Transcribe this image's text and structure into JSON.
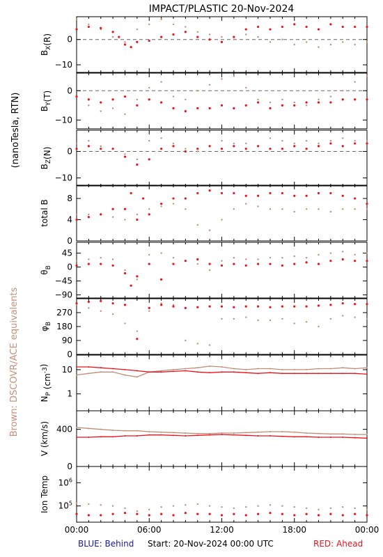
{
  "title": "IMPACT/PLASTIC   20-Nov-2024",
  "left_labels": {
    "units": "(nanoTesla, RTN)",
    "equiv": "Brown: DSCOVR/ACE equivalents"
  },
  "footer": {
    "blue": "BLUE: Behind",
    "start": "Start: 20-Nov-2024 00:00 UTC",
    "red": "RED: Ahead"
  },
  "colors": {
    "ahead": "#e8141c",
    "equiv": "#c08c78",
    "blue": "#1a1aa0",
    "brown_text": "#c89078"
  },
  "chart_data": [
    {
      "type": "scatter",
      "panel": "bx",
      "ylabel": "B_X(R)",
      "yticks": [
        "0",
        "−10"
      ],
      "ylim": [
        -13,
        9
      ],
      "zero_line": true,
      "series": [
        {
          "name": "Ahead",
          "color": "red",
          "x": [
            0,
            1,
            2,
            3,
            3.5,
            4,
            4.5,
            5,
            6,
            7,
            8,
            9,
            10,
            11,
            12,
            13,
            14,
            15,
            16,
            17,
            18,
            19,
            20,
            21,
            22,
            23,
            24
          ],
          "y": [
            4,
            5,
            4.5,
            3,
            1,
            -2,
            -3,
            -1,
            -0.5,
            1,
            2,
            3,
            1,
            0,
            -1,
            1,
            4,
            5,
            4,
            5,
            6,
            5,
            4,
            6,
            5,
            5,
            5
          ]
        },
        {
          "name": "DSCOVR/ACE",
          "color": "brown",
          "x": [
            0,
            1,
            2,
            3,
            4,
            5,
            6,
            7,
            8,
            9,
            10,
            11,
            12,
            13,
            14,
            15,
            16,
            17,
            18,
            19,
            20,
            21,
            22,
            23,
            24
          ],
          "y": [
            8,
            6,
            4,
            1,
            -1,
            4,
            6,
            8,
            6,
            5,
            3,
            2,
            1,
            0,
            2,
            1,
            -1,
            0,
            -2,
            -1,
            -3,
            -2,
            -1,
            -2,
            -1
          ]
        }
      ]
    },
    {
      "type": "scatter",
      "panel": "by",
      "ylabel": "B_Y(T)",
      "yticks": [
        "0",
        "−10"
      ],
      "ylim": [
        -13,
        6
      ],
      "zero_line": true,
      "series": [
        {
          "name": "Ahead",
          "color": "red",
          "x": [
            0,
            1,
            2,
            3,
            4,
            5,
            6,
            7,
            8,
            9,
            10,
            11,
            12,
            13,
            14,
            15,
            16,
            17,
            18,
            19,
            20,
            21,
            22,
            23,
            24
          ],
          "y": [
            -2,
            -3,
            -4,
            -3,
            -2,
            -5,
            -3,
            -4,
            -6,
            -7,
            -6,
            -6,
            -5,
            -6,
            -5,
            -4,
            -6,
            -5,
            -5,
            -4,
            -4,
            -4,
            -3,
            -3,
            -3
          ]
        },
        {
          "name": "DSCOVR/ACE",
          "color": "brown",
          "x": [
            0,
            1,
            2,
            3,
            4,
            5,
            6,
            7,
            8,
            9,
            10,
            11,
            12,
            13,
            14,
            15,
            16,
            17,
            18,
            19,
            20,
            21,
            22,
            23,
            24
          ],
          "y": [
            -2,
            -5,
            -7,
            -6,
            -8,
            -3,
            1,
            3,
            -2,
            -3,
            0,
            2,
            4,
            5,
            1,
            -3,
            -4,
            -3,
            -4,
            -5,
            -3,
            -2,
            0,
            3,
            5
          ]
        }
      ]
    },
    {
      "type": "scatter",
      "panel": "bz",
      "ylabel": "B_Z(N)",
      "yticks": [
        "0",
        "−10"
      ],
      "ylim": [
        -13,
        8
      ],
      "zero_line": true,
      "series": [
        {
          "name": "Ahead",
          "color": "red",
          "x": [
            0,
            1,
            2,
            3,
            4,
            5,
            6,
            7,
            8,
            9,
            10,
            11,
            12,
            13,
            14,
            15,
            16,
            17,
            18,
            19,
            20,
            21,
            22,
            23,
            24
          ],
          "y": [
            1,
            2,
            1,
            1,
            -2,
            -5,
            -3,
            1,
            2,
            0,
            1,
            2,
            1,
            2,
            1,
            2,
            1,
            1,
            2,
            1,
            2,
            3,
            2,
            3,
            3
          ]
        },
        {
          "name": "DSCOVR/ACE",
          "color": "brown",
          "x": [
            0,
            1,
            2,
            3,
            4,
            5,
            6,
            7,
            8,
            9,
            10,
            11,
            12,
            13,
            14,
            15,
            16,
            17,
            18,
            19,
            20,
            21,
            22,
            23,
            24
          ],
          "y": [
            3,
            4,
            2,
            1,
            -1,
            -3,
            4,
            5,
            3,
            1,
            0,
            2,
            4,
            3,
            3,
            2,
            5,
            4,
            3,
            4,
            3,
            4,
            5,
            4,
            4
          ]
        }
      ]
    },
    {
      "type": "scatter",
      "panel": "btotal",
      "ylabel": "total B",
      "yticks": [
        "0",
        "4",
        "8"
      ],
      "ylim": [
        0,
        10.5
      ],
      "zero_line": false,
      "series": [
        {
          "name": "Ahead",
          "color": "red",
          "x": [
            0,
            1,
            2,
            3,
            4,
            4.5,
            5,
            5.5,
            6,
            7,
            8,
            9,
            10,
            11,
            12,
            13,
            14,
            15,
            16,
            17,
            18,
            19,
            20,
            21,
            22,
            23,
            24
          ],
          "y": [
            4,
            4.5,
            5,
            6,
            6,
            9,
            4,
            8,
            5,
            7,
            8,
            8,
            9,
            9.5,
            9,
            9,
            8.5,
            8.5,
            9,
            9,
            8.5,
            8.5,
            9,
            9,
            8.5,
            8,
            7
          ]
        },
        {
          "name": "DSCOVR/ACE",
          "color": "brown",
          "x": [
            0,
            1,
            2,
            3,
            4,
            5,
            6,
            7,
            8,
            9,
            10,
            11,
            12,
            13,
            14,
            15,
            16,
            17,
            18,
            19,
            20,
            21,
            22,
            23,
            24
          ],
          "y": [
            5,
            5,
            5,
            4.5,
            4,
            5,
            6,
            6.5,
            7,
            6,
            3,
            2,
            4,
            6,
            7,
            6.5,
            6,
            6,
            5.5,
            6,
            6,
            5.5,
            6,
            6,
            6
          ]
        }
      ]
    },
    {
      "type": "scatter",
      "panel": "theta",
      "ylabel": "θ_B",
      "yticks": [
        "45",
        "0",
        "−45",
        "−90"
      ],
      "ylim": [
        -100,
        80
      ],
      "zero_line": false,
      "series": [
        {
          "name": "Ahead",
          "color": "red",
          "x": [
            0,
            1,
            2,
            3,
            4,
            4.5,
            5,
            6,
            7,
            8,
            9,
            10,
            11,
            12,
            13,
            14,
            15,
            16,
            17,
            18,
            19,
            20,
            21,
            22,
            23,
            24
          ],
          "y": [
            5,
            10,
            10,
            5,
            -20,
            -60,
            -30,
            10,
            -40,
            10,
            20,
            25,
            10,
            5,
            10,
            5,
            10,
            10,
            5,
            10,
            15,
            10,
            20,
            25,
            20,
            20
          ]
        },
        {
          "name": "DSCOVR/ACE",
          "color": "brown",
          "x": [
            0,
            1,
            2,
            3,
            4,
            5,
            6,
            7,
            8,
            9,
            10,
            11,
            12,
            13,
            14,
            15,
            16,
            17,
            18,
            19,
            20,
            21,
            22,
            23,
            24
          ],
          "y": [
            20,
            25,
            30,
            25,
            -10,
            -40,
            40,
            45,
            30,
            20,
            10,
            -10,
            20,
            30,
            25,
            25,
            30,
            30,
            35,
            30,
            40,
            45,
            50,
            40,
            45
          ]
        }
      ]
    },
    {
      "type": "scatter",
      "panel": "phi",
      "ylabel": "φ_B",
      "yticks": [
        "270",
        "180",
        "90",
        "0"
      ],
      "ylim": [
        0,
        360
      ],
      "zero_line": false,
      "series": [
        {
          "name": "Ahead",
          "color": "red",
          "x": [
            0,
            1,
            2,
            3,
            4,
            5,
            6,
            7,
            8,
            9,
            10,
            11,
            12,
            13,
            14,
            15,
            16,
            17,
            18,
            19,
            20,
            21,
            22,
            23,
            24
          ],
          "y": [
            330,
            340,
            345,
            330,
            320,
            100,
            300,
            320,
            310,
            300,
            305,
            310,
            310,
            305,
            310,
            310,
            305,
            310,
            310,
            310,
            315,
            320,
            330,
            325,
            325
          ]
        },
        {
          "name": "DSCOVR/ACE",
          "color": "brown",
          "x": [
            0,
            1,
            2,
            3,
            4,
            5,
            6,
            7,
            8,
            9,
            10,
            11,
            12,
            13,
            14,
            15,
            16,
            17,
            18,
            19,
            20,
            21,
            22,
            23,
            24
          ],
          "y": [
            320,
            300,
            280,
            260,
            200,
            150,
            280,
            330,
            320,
            90,
            70,
            60,
            230,
            230,
            240,
            220,
            220,
            230,
            200,
            210,
            180,
            230,
            250,
            240,
            230
          ]
        }
      ]
    },
    {
      "type": "line",
      "panel": "np",
      "ylabel": "N_P (cm^-3)",
      "yticks": [
        "10",
        "1"
      ],
      "ylim_log": [
        0.2,
        40
      ],
      "log": true,
      "series": [
        {
          "name": "Ahead",
          "color": "red",
          "x": [
            0,
            1,
            2,
            3,
            4,
            5,
            6,
            7,
            8,
            9,
            10,
            11,
            12,
            13,
            14,
            15,
            16,
            17,
            18,
            19,
            20,
            21,
            22,
            23,
            24
          ],
          "y": [
            13,
            13,
            12,
            11,
            10,
            9,
            8,
            8,
            8.5,
            9,
            8,
            7.5,
            8,
            8,
            7.5,
            7,
            7.5,
            7,
            7,
            7,
            7,
            7,
            7,
            7,
            6.5
          ]
        },
        {
          "name": "DSCOVR/ACE",
          "color": "brown",
          "x": [
            0,
            1,
            2,
            3,
            4,
            5,
            6,
            7,
            8,
            9,
            10,
            11,
            12,
            13,
            14,
            15,
            16,
            17,
            18,
            19,
            20,
            21,
            22,
            23,
            24
          ],
          "y": [
            6,
            7,
            8,
            8,
            6,
            5,
            8,
            9,
            10,
            11,
            12,
            14,
            13,
            11,
            10,
            11,
            11,
            10,
            10,
            10,
            11,
            11,
            12,
            11,
            12
          ]
        }
      ]
    },
    {
      "type": "line",
      "panel": "v",
      "ylabel": "V (km/s)",
      "yticks": [
        "400",
        "0"
      ],
      "ylim": [
        0,
        600
      ],
      "series": [
        {
          "name": "Ahead",
          "color": "red",
          "x": [
            0,
            1,
            2,
            3,
            4,
            5,
            6,
            7,
            8,
            9,
            10,
            11,
            12,
            13,
            14,
            15,
            16,
            17,
            18,
            19,
            20,
            21,
            22,
            23,
            24
          ],
          "y": [
            315,
            315,
            320,
            320,
            330,
            330,
            340,
            340,
            335,
            330,
            335,
            340,
            345,
            340,
            335,
            330,
            330,
            325,
            320,
            320,
            315,
            315,
            315,
            310,
            305
          ]
        },
        {
          "name": "DSCOVR/ACE",
          "color": "brown",
          "x": [
            0,
            1,
            2,
            3,
            4,
            5,
            6,
            7,
            8,
            9,
            10,
            11,
            12,
            13,
            14,
            15,
            16,
            17,
            18,
            19,
            20,
            21,
            22,
            23,
            24
          ],
          "y": [
            420,
            410,
            400,
            390,
            385,
            385,
            375,
            370,
            365,
            360,
            355,
            355,
            360,
            360,
            365,
            370,
            375,
            375,
            370,
            360,
            355,
            350,
            350,
            345,
            345
          ]
        }
      ]
    },
    {
      "type": "scatter",
      "panel": "temp",
      "ylabel": "Ion Temp",
      "yticks": [
        "10^6",
        "10^5"
      ],
      "ylim_log": [
        20000,
        5000000
      ],
      "log": true,
      "series": [
        {
          "name": "Ahead",
          "color": "red",
          "x": [
            0,
            1,
            2,
            3,
            4,
            5,
            6,
            7,
            8,
            9,
            10,
            11,
            12,
            13,
            14,
            15,
            16,
            17,
            18,
            19,
            20,
            21,
            22,
            23,
            24
          ],
          "y": [
            45000,
            40000,
            40000,
            45000,
            50000,
            45000,
            40000,
            45000,
            40000,
            50000,
            45000,
            45000,
            40000,
            45000,
            40000,
            45000,
            50000,
            45000,
            40000,
            45000,
            40000,
            45000,
            40000,
            45000,
            40000
          ]
        },
        {
          "name": "DSCOVR/ACE",
          "color": "brown",
          "x": [
            0,
            1,
            2,
            3,
            4,
            5,
            6,
            7,
            8,
            9,
            10,
            11,
            12,
            13,
            14,
            15,
            16,
            17,
            18,
            19,
            20,
            21,
            22,
            23,
            24
          ],
          "y": [
            130000,
            120000,
            110000,
            100000,
            80000,
            60000,
            70000,
            90000,
            100000,
            110000,
            120000,
            100000,
            90000,
            80000,
            90000,
            100000,
            110000,
            100000,
            90000,
            80000,
            70000,
            80000,
            90000,
            80000,
            70000
          ]
        }
      ]
    }
  ],
  "xaxis": {
    "ticks": [
      "00:00",
      "06:00",
      "12:00",
      "18:00",
      "00:00"
    ],
    "xlim": [
      0,
      24
    ]
  }
}
